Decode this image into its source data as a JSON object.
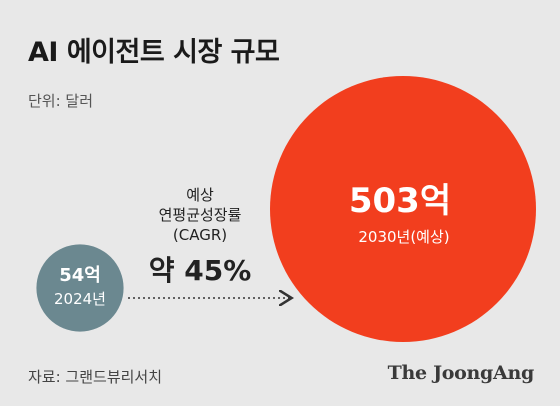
{
  "title": "AI 에이전트 시장 규모",
  "unit": "단위: 달러",
  "source": "자료: 그랜드뷰리서치",
  "logo": "The JoongAng",
  "colors": {
    "background": "#e8e8e8",
    "small_circle": "#6b8890",
    "large_circle": "#f23e1e",
    "arrow": "#333333"
  },
  "chart_data": {
    "type": "bubble",
    "points": [
      {
        "label": "2024년",
        "value": 54,
        "value_text": "54억"
      },
      {
        "label": "2030년(예상)",
        "value": 503,
        "value_text": "503억"
      }
    ],
    "annotation": {
      "lines": [
        "예상",
        "연평균성장률",
        "(CAGR)"
      ],
      "value": "약 45%"
    }
  }
}
